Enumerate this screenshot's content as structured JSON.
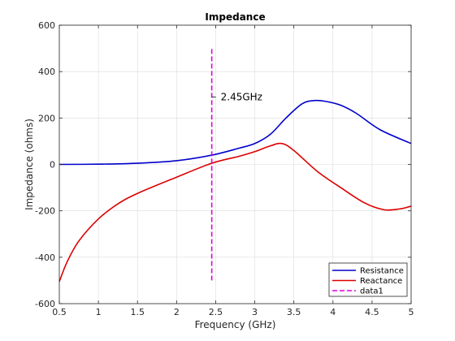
{
  "chart_data": {
    "type": "line",
    "title": "Impedance",
    "xlabel": "Frequency (GHz)",
    "ylabel": "Impedance (ohms)",
    "xlim": [
      0.5,
      5
    ],
    "ylim": [
      -600,
      600
    ],
    "xticks": [
      0.5,
      1,
      1.5,
      2,
      2.5,
      3,
      3.5,
      4,
      4.5,
      5
    ],
    "xtick_labels": [
      "0.5",
      "1",
      "1.5",
      "2",
      "2.5",
      "3",
      "3.5",
      "4",
      "4.5",
      "5"
    ],
    "yticks": [
      -600,
      -400,
      -200,
      0,
      200,
      400,
      600
    ],
    "ytick_labels": [
      "-600",
      "-400",
      "-200",
      "0",
      "200",
      "400",
      "600"
    ],
    "grid": true,
    "legend_position": "bottom-right",
    "series": [
      {
        "name": "Resistance",
        "color": "#0000cc",
        "style": "solid",
        "x": [
          0.5,
          1.0,
          1.5,
          2.0,
          2.45,
          2.8,
          3.0,
          3.2,
          3.4,
          3.6,
          3.75,
          3.9,
          4.1,
          4.3,
          4.6,
          5.0
        ],
        "y": [
          0,
          1,
          5,
          16,
          40,
          70,
          90,
          130,
          200,
          260,
          275,
          272,
          255,
          220,
          150,
          90
        ]
      },
      {
        "name": "Reactance",
        "color": "#dd0000",
        "style": "solid",
        "x": [
          0.5,
          0.6,
          0.75,
          1.0,
          1.25,
          1.5,
          2.0,
          2.45,
          2.8,
          3.0,
          3.2,
          3.35,
          3.5,
          3.8,
          4.1,
          4.4,
          4.65,
          4.85,
          5.0
        ],
        "y": [
          -505,
          -420,
          -330,
          -235,
          -170,
          -125,
          -55,
          5,
          35,
          55,
          80,
          90,
          60,
          -30,
          -100,
          -165,
          -195,
          -192,
          -180
        ]
      },
      {
        "name": "data1",
        "color": "#dd00dd",
        "style": "dashed",
        "x": [
          2.45,
          2.45
        ],
        "y": [
          -500,
          500
        ]
      }
    ],
    "annotations": [
      {
        "text": "2.45GHz",
        "x": 2.45,
        "y": 290
      }
    ]
  }
}
